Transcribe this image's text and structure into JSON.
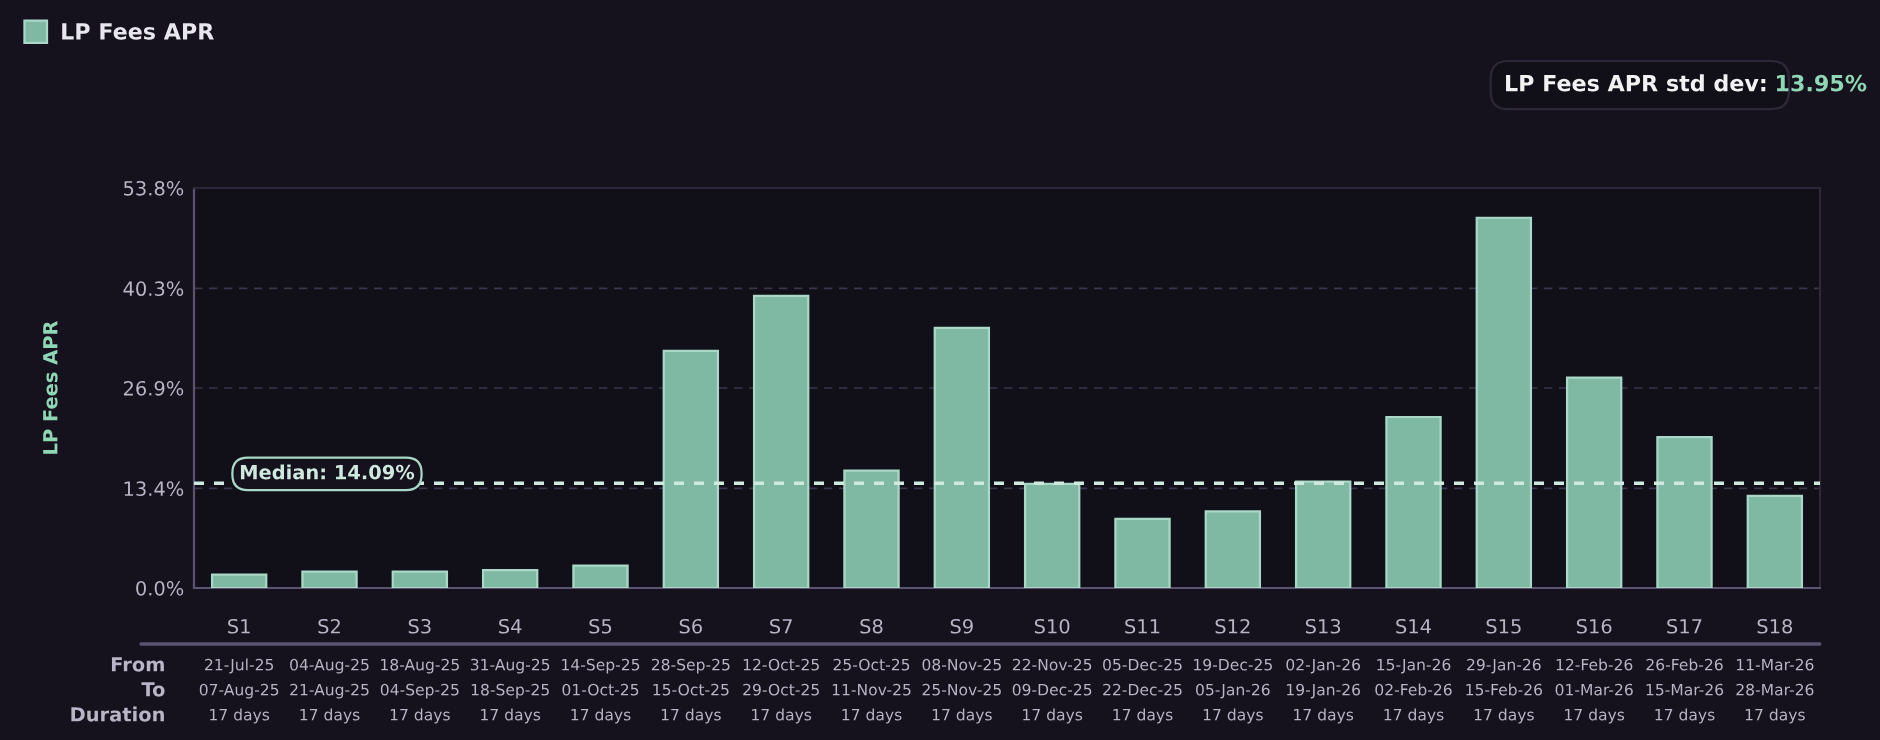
{
  "chart_data": {
    "type": "bar",
    "categories": [
      "S1",
      "S2",
      "S3",
      "S4",
      "S5",
      "S6",
      "S7",
      "S8",
      "S9",
      "S10",
      "S11",
      "S12",
      "S13",
      "S14",
      "S15",
      "S16",
      "S17",
      "S18"
    ],
    "series": [
      {
        "name": "LP Fees APR",
        "color": "#7fb9a3",
        "values": [
          1.8,
          2.2,
          2.2,
          2.4,
          3.0,
          31.9,
          39.3,
          15.8,
          35.0,
          14.0,
          9.3,
          10.3,
          14.3,
          23.0,
          49.8,
          28.3,
          20.3,
          12.4
        ]
      }
    ],
    "ylabel": "LP Fees APR",
    "ylim": [
      0,
      53.8
    ],
    "yticks": [
      {
        "value": 0,
        "label": "0.0%"
      },
      {
        "value": 13.4,
        "label": "13.4%"
      },
      {
        "value": 26.9,
        "label": "26.9%"
      },
      {
        "value": 40.3,
        "label": "40.3%"
      },
      {
        "value": 53.8,
        "label": "53.8%"
      }
    ],
    "grid": "y",
    "legend": "top left",
    "ref_lines": [
      {
        "axis": "y",
        "value": 14.09,
        "label": "Median: 14.09%",
        "color": "#cfe9df",
        "line_style": "dashed"
      }
    ],
    "annotations": [
      "LP Fees APR std dev: 13.95%",
      "From",
      "21-Jul-25",
      "04-Aug-25",
      "18-Aug-25",
      "31-Aug-25",
      "14-Sep-25",
      "28-Sep-25",
      "12-Oct-25",
      "25-Oct-25",
      "08-Nov-25",
      "22-Nov-25",
      "05-Dec-25",
      "19-Dec-25",
      "02-Jan-26",
      "15-Jan-26",
      "29-Jan-26",
      "12-Feb-26",
      "26-Feb-26",
      "11-Mar-26",
      "To",
      "07-Aug-25",
      "21-Aug-25",
      "04-Sep-25",
      "18-Sep-25",
      "01-Oct-25",
      "15-Oct-25",
      "29-Oct-25",
      "11-Nov-25",
      "25-Nov-25",
      "09-Dec-25",
      "22-Dec-25",
      "05-Jan-26",
      "19-Jan-26",
      "02-Feb-26",
      "15-Feb-26",
      "01-Mar-26",
      "15-Mar-26",
      "28-Mar-26",
      "Duration",
      "17 days",
      "17 days",
      "17 days",
      "17 days",
      "17 days",
      "17 days",
      "17 days",
      "17 days",
      "17 days",
      "17 days",
      "17 days",
      "17 days",
      "17 days",
      "17 days",
      "17 days",
      "17 days",
      "17 days",
      "17 days"
    ]
  }
}
